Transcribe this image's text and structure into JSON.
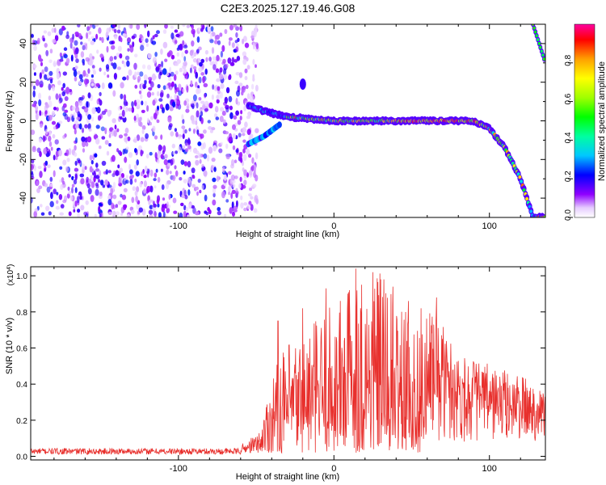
{
  "title": "C2E3.2025.127.19.46.G08",
  "chart_data": [
    {
      "type": "heatmap",
      "xlabel": "Height of straight line (km)",
      "ylabel": "Frequency (Hz)",
      "xlim": [
        -195,
        136
      ],
      "ylim": [
        -50,
        50
      ],
      "x_ticks": [
        -100,
        0,
        100
      ],
      "y_ticks": [
        -40,
        -20,
        0,
        20,
        40
      ],
      "colorbar": {
        "label": "Normalized spectral amplitude",
        "range": [
          0,
          1
        ],
        "ticks": [
          "0.0",
          "0.2",
          "0.4",
          "0.6",
          "0.8"
        ]
      },
      "features": {
        "noise_region_x": [
          -195,
          -55
        ],
        "main_track": [
          {
            "x": -55,
            "y": 8
          },
          {
            "x": -45,
            "y": 5
          },
          {
            "x": -30,
            "y": 2
          },
          {
            "x": 0,
            "y": 0
          },
          {
            "x": 90,
            "y": 0
          },
          {
            "x": 100,
            "y": -4
          },
          {
            "x": 110,
            "y": -14
          },
          {
            "x": 120,
            "y": -30
          },
          {
            "x": 128,
            "y": -50
          }
        ],
        "lower_branch": [
          {
            "x": -55,
            "y": -12
          },
          {
            "x": -45,
            "y": -8
          },
          {
            "x": -35,
            "y": -2
          }
        ],
        "upper_right_branch": [
          {
            "x": 128,
            "y": 50
          },
          {
            "x": 136,
            "y": 30
          }
        ],
        "isolated_blob": {
          "x": -20,
          "y": 19
        }
      }
    },
    {
      "type": "line",
      "xlabel": "Height of straight line (km)",
      "ylabel": "SNR (10 * v/v)",
      "scale_label": "(x10",
      "scale_exp": "4",
      "scale_close": ")",
      "xlim": [
        -195,
        136
      ],
      "ylim": [
        -0.02,
        1.05
      ],
      "x_ticks": [
        -100,
        0,
        100
      ],
      "y_ticks": [
        0.0,
        0.2,
        0.4,
        0.6,
        0.8,
        1.0
      ],
      "y_tick_labels": [
        "0.0",
        "0.2",
        "0.4",
        "0.6",
        "0.8",
        "1.0"
      ],
      "color": "#e8302d",
      "envelope": [
        {
          "x": -195,
          "y": 0.04
        },
        {
          "x": -60,
          "y": 0.04
        },
        {
          "x": -48,
          "y": 0.12
        },
        {
          "x": -40,
          "y": 0.45
        },
        {
          "x": -30,
          "y": 0.6
        },
        {
          "x": -15,
          "y": 0.72
        },
        {
          "x": 0,
          "y": 0.85
        },
        {
          "x": 15,
          "y": 1.03
        },
        {
          "x": 27,
          "y": 1.02
        },
        {
          "x": 38,
          "y": 0.92
        },
        {
          "x": 50,
          "y": 0.72
        },
        {
          "x": 65,
          "y": 0.78
        },
        {
          "x": 80,
          "y": 0.55
        },
        {
          "x": 100,
          "y": 0.48
        },
        {
          "x": 120,
          "y": 0.42
        },
        {
          "x": 136,
          "y": 0.35
        }
      ],
      "peaks": [
        {
          "x": -36,
          "y": 0.75
        },
        {
          "x": -20,
          "y": 0.82
        },
        {
          "x": -5,
          "y": 0.93
        },
        {
          "x": 10,
          "y": 0.92
        },
        {
          "x": 14,
          "y": 1.04
        },
        {
          "x": 25,
          "y": 1.02
        },
        {
          "x": 30,
          "y": 0.98
        },
        {
          "x": 38,
          "y": 0.94
        },
        {
          "x": 48,
          "y": 0.86
        },
        {
          "x": 56,
          "y": 0.82
        },
        {
          "x": 66,
          "y": 0.88
        }
      ]
    }
  ]
}
